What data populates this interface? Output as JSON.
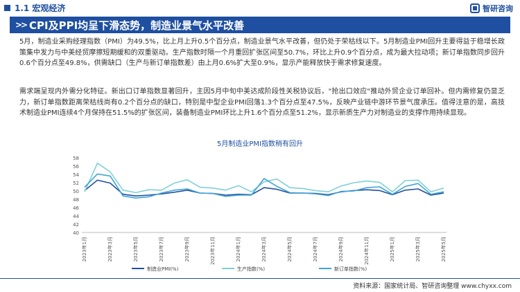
{
  "header": {
    "section": "1.1 宏观经济",
    "logo_text": "智研咨询"
  },
  "banner": {
    "chevrons": ">>",
    "title": "CPI及PPI均呈下滑态势，制造业景气水平改善"
  },
  "paragraphs": [
    "5月，制造业采购经理指数（PMI）为49.5%，比上月上升0.5个百分点，制造业景气水平改善，但仍处于荣枯线以下。5月制造业PMI回升主要得益于稳增长政策集中发力与中美经贸摩擦短期缓和的双重驱动。生产指数时隔一个月重回扩张区间至50.7%，环比上升0.9个百分点，成为最大拉动项；新订单指数同步回升0.6个百分点至49.8%，供需缺口（生产与新订单指数差）由上月0.6%扩大至0.9%，显示产能释放快于需求修复速度。",
    "需求端呈现内外需分化特征。新出口订单指数显著回升，主因5月中旬中美达成阶段性关税协议后，\"抢出口效应\"推动外贸企业订单回补。但内需修复仍显乏力，新订单指数距离荣枯线尚有0.2个百分点的缺口，特别是中型企业PMI回落1.3个百分点至47.5%，反映产业链中游环节景气度承压。值得注意的是，高技术制造业PMI连续4个月保持在51.5%的扩张区间，装备制造业PMI环比上升1.6个百分点至51.2%，显示新质生产力对制造业的支撑作用持续显现。"
  ],
  "chart_data": {
    "type": "line",
    "title": "5月制造业PMI指数稍有回升",
    "ylim": [
      40,
      58
    ],
    "yticks": [
      40,
      42,
      44,
      46,
      48,
      50,
      52,
      54,
      56,
      58
    ],
    "x": [
      "2023年1月",
      "2023年2月",
      "2023年3月",
      "2023年4月",
      "2023年5月",
      "2023年6月",
      "2023年7月",
      "2023年8月",
      "2023年9月",
      "2023年10月",
      "2023年11月",
      "2023年12月",
      "2024年1月",
      "2024年2月",
      "2024年3月",
      "2024年4月",
      "2024年5月",
      "2024年6月",
      "2024年7月",
      "2024年8月",
      "2024年9月",
      "2024年10月",
      "2024年11月",
      "2024年12月",
      "2025年1月",
      "2025年2月",
      "2025年3月",
      "2025年4月",
      "2025年5月"
    ],
    "xtick_labels": [
      "2023年1月",
      "2023年3月",
      "2023年5月",
      "2023年7月",
      "2023年9月",
      "2023年11月",
      "2024年1月",
      "2024年3月",
      "2024年5月",
      "2024年7月",
      "2024年9月",
      "2024年11月",
      "2025年1月",
      "2025年3月",
      "2025年5月"
    ],
    "grid": false,
    "legend": "bottom",
    "series": [
      {
        "name": "制造业PMI(%)",
        "color": "#1e4fa0",
        "values": [
          50.1,
          52.6,
          51.9,
          49.2,
          48.8,
          49.0,
          49.3,
          49.7,
          50.2,
          49.5,
          49.4,
          49.0,
          49.2,
          49.1,
          50.8,
          50.4,
          49.5,
          49.5,
          49.4,
          49.1,
          49.8,
          50.1,
          50.3,
          50.1,
          49.1,
          50.2,
          50.5,
          49.0,
          49.5
        ]
      },
      {
        "name": "生产指数(%)",
        "color": "#7fd0d6",
        "values": [
          49.8,
          56.7,
          54.6,
          50.2,
          49.6,
          50.3,
          50.2,
          51.9,
          52.7,
          50.9,
          50.7,
          50.2,
          51.3,
          49.8,
          52.2,
          52.9,
          50.8,
          50.6,
          50.1,
          49.8,
          51.2,
          52.0,
          52.4,
          52.1,
          49.8,
          52.5,
          52.6,
          49.8,
          50.7
        ]
      },
      {
        "name": "新订单指数(%)",
        "color": "#3fa4d6",
        "values": [
          50.9,
          54.1,
          53.6,
          48.8,
          48.3,
          48.6,
          49.5,
          50.2,
          50.5,
          49.5,
          49.4,
          48.7,
          49.0,
          49.0,
          53.0,
          51.1,
          49.6,
          49.5,
          49.3,
          48.9,
          49.9,
          50.0,
          50.8,
          51.0,
          49.2,
          51.1,
          51.8,
          49.2,
          49.8
        ]
      }
    ]
  },
  "footer": {
    "source": "资料来源：国家统计局、智研咨询整理  www.chyxx.com"
  }
}
